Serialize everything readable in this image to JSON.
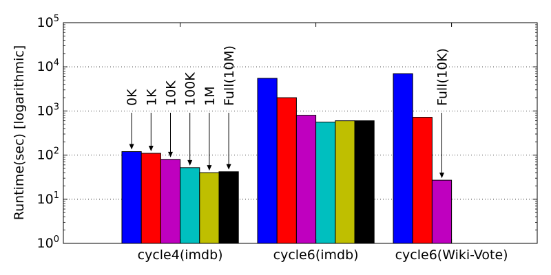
{
  "chart_data": {
    "type": "bar",
    "yscale": "log",
    "ylabel": "Runtime(sec) [logarithmic]",
    "xlabel": "",
    "title": "",
    "ylim": [
      1,
      100000
    ],
    "y_ticks": [
      {
        "base": "10",
        "exp": "0"
      },
      {
        "base": "10",
        "exp": "1"
      },
      {
        "base": "10",
        "exp": "2"
      },
      {
        "base": "10",
        "exp": "3"
      },
      {
        "base": "10",
        "exp": "4"
      },
      {
        "base": "10",
        "exp": "5"
      }
    ],
    "grid": "horizontal-dotted",
    "categories": [
      "cycle4(imdb)",
      "cycle6(imdb)",
      "cycle6(Wiki-Vote)"
    ],
    "series": [
      {
        "name": "0K",
        "color": "#0000ff",
        "values": [
          120,
          5500,
          7000
        ]
      },
      {
        "name": "1K",
        "color": "#ff0000",
        "values": [
          110,
          2000,
          720
        ]
      },
      {
        "name": "10K",
        "color": "#bf00bf",
        "values": [
          80,
          800,
          27
        ]
      },
      {
        "name": "100K",
        "color": "#00bfbf",
        "values": [
          52,
          560,
          null
        ]
      },
      {
        "name": "1M",
        "color": "#bfbf00",
        "values": [
          40,
          600,
          null
        ]
      },
      {
        "name": "Full(10M)",
        "color": "#000000",
        "values": [
          42,
          600,
          null
        ]
      }
    ],
    "annotations": [
      {
        "text": "0K",
        "category": 0,
        "series": 0
      },
      {
        "text": "1K",
        "category": 0,
        "series": 1
      },
      {
        "text": "10K",
        "category": 0,
        "series": 2
      },
      {
        "text": "100K",
        "category": 0,
        "series": 3
      },
      {
        "text": "1M",
        "category": 0,
        "series": 4
      },
      {
        "text": "Full(10M)",
        "category": 0,
        "series": 5
      },
      {
        "text": "Full(10K)",
        "category": 2,
        "series": 2
      }
    ]
  }
}
